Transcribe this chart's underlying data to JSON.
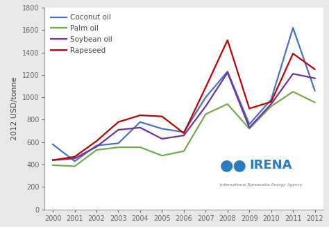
{
  "years": [
    2000,
    2001,
    2002,
    2003,
    2004,
    2005,
    2006,
    2007,
    2008,
    2009,
    2010,
    2011,
    2012
  ],
  "coconut_oil": [
    580,
    430,
    570,
    590,
    780,
    720,
    690,
    1000,
    1230,
    760,
    980,
    1620,
    1060
  ],
  "palm_oil": [
    395,
    385,
    530,
    555,
    555,
    480,
    520,
    850,
    940,
    720,
    920,
    1050,
    955
  ],
  "soybean_oil": [
    440,
    455,
    560,
    710,
    730,
    630,
    660,
    920,
    1220,
    730,
    940,
    1210,
    1170
  ],
  "rapeseed": [
    440,
    470,
    610,
    780,
    840,
    830,
    680,
    1090,
    1510,
    900,
    960,
    1390,
    1250
  ],
  "colors": {
    "coconut_oil": "#4472C4",
    "palm_oil": "#70AD47",
    "soybean_oil": "#7030A0",
    "rapeseed": "#C00000"
  },
  "legend_labels": [
    "Coconut oil",
    "Palm oil",
    "Soybean oil",
    "Rapeseed"
  ],
  "ylabel": "2012 USD/tonne",
  "ylim": [
    0,
    1800
  ],
  "yticks": [
    0,
    200,
    400,
    600,
    800,
    1000,
    1200,
    1400,
    1600,
    1800
  ],
  "background_color": "#e8e8e8",
  "plot_bg_color": "#ffffff",
  "irena_text": "IRENA",
  "irena_sub": "International Renewable Energy Agency",
  "irena_color": "#2b7bbf",
  "linewidth": 1.6
}
